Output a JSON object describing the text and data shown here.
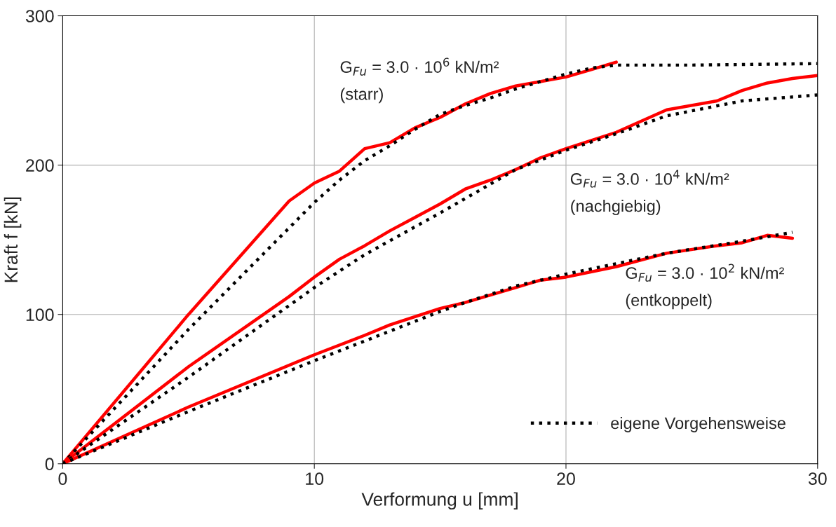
{
  "chart_data": {
    "type": "line",
    "xlabel": "Verformung u [mm]",
    "ylabel": "Kraft f [kN]",
    "xlim": [
      0,
      30
    ],
    "ylim": [
      0,
      300
    ],
    "xticks": [
      0,
      10,
      20,
      30
    ],
    "yticks": [
      0,
      100,
      200,
      300
    ],
    "grid": true,
    "legend": "bottom right",
    "series": [
      {
        "color": "#ff0000",
        "line_style": "solid",
        "x": [
          0,
          5,
          9,
          10,
          11,
          12,
          13,
          14,
          15,
          16,
          17,
          18,
          19,
          20,
          21,
          22
        ],
        "values": [
          0,
          100,
          176,
          188,
          196,
          211,
          215,
          225,
          232,
          241,
          248,
          253,
          256,
          259,
          264,
          269
        ]
      },
      {
        "name": "eigene Vorgehensweise",
        "color": "#000000",
        "line_style": "dotted",
        "x": [
          0,
          5,
          9,
          10,
          11,
          12,
          13,
          14,
          15,
          16,
          17,
          18,
          19,
          20,
          21,
          22,
          25,
          30
        ],
        "values": [
          0,
          90,
          158,
          175,
          190,
          203,
          213,
          224,
          234,
          240,
          245,
          251,
          256,
          261,
          265,
          267,
          267,
          268
        ]
      },
      {
        "color": "#ff0000",
        "line_style": "solid",
        "x": [
          0,
          5,
          9,
          10,
          11,
          12,
          13,
          14,
          15,
          16,
          17,
          18,
          19,
          20,
          22,
          24,
          26,
          27,
          28,
          29,
          30
        ],
        "values": [
          0,
          65,
          112,
          125,
          137,
          146,
          156,
          165,
          174,
          184,
          190,
          197,
          205,
          211,
          222,
          237,
          243,
          250,
          255,
          258,
          260
        ]
      },
      {
        "color": "#000000",
        "line_style": "dotted",
        "x": [
          0,
          5,
          10,
          12,
          15,
          18,
          20,
          22,
          24,
          27,
          30
        ],
        "values": [
          0,
          58,
          118,
          140,
          168,
          197,
          210,
          221,
          233,
          243,
          247
        ]
      },
      {
        "color": "#ff0000",
        "line_style": "solid",
        "x": [
          0,
          5,
          10,
          12,
          13,
          15,
          16,
          18,
          19,
          20,
          22,
          24,
          26,
          27,
          28,
          29
        ],
        "values": [
          0,
          38,
          73,
          86,
          93,
          104,
          108,
          118,
          123,
          125,
          132,
          141,
          146,
          148,
          153,
          151
        ]
      },
      {
        "color": "#000000",
        "line_style": "dotted",
        "x": [
          0,
          5,
          10,
          15,
          16,
          18,
          20,
          22,
          24,
          27,
          29
        ],
        "values": [
          0,
          35,
          69,
          102,
          108,
          119,
          127,
          134,
          141,
          149,
          155
        ]
      }
    ],
    "annotations": [
      "G$_{Fu}$ = 3.0 · 10$^{6}$ kN/m²",
      "(starr)",
      "G$_{Fu}$ = 3.0 · 10$^{4}$ kN/m²",
      "(nachgiebig)",
      "G$_{Fu}$ = 3.0 · 10$^{2}$ kN/m²",
      "(entkoppelt)"
    ]
  }
}
